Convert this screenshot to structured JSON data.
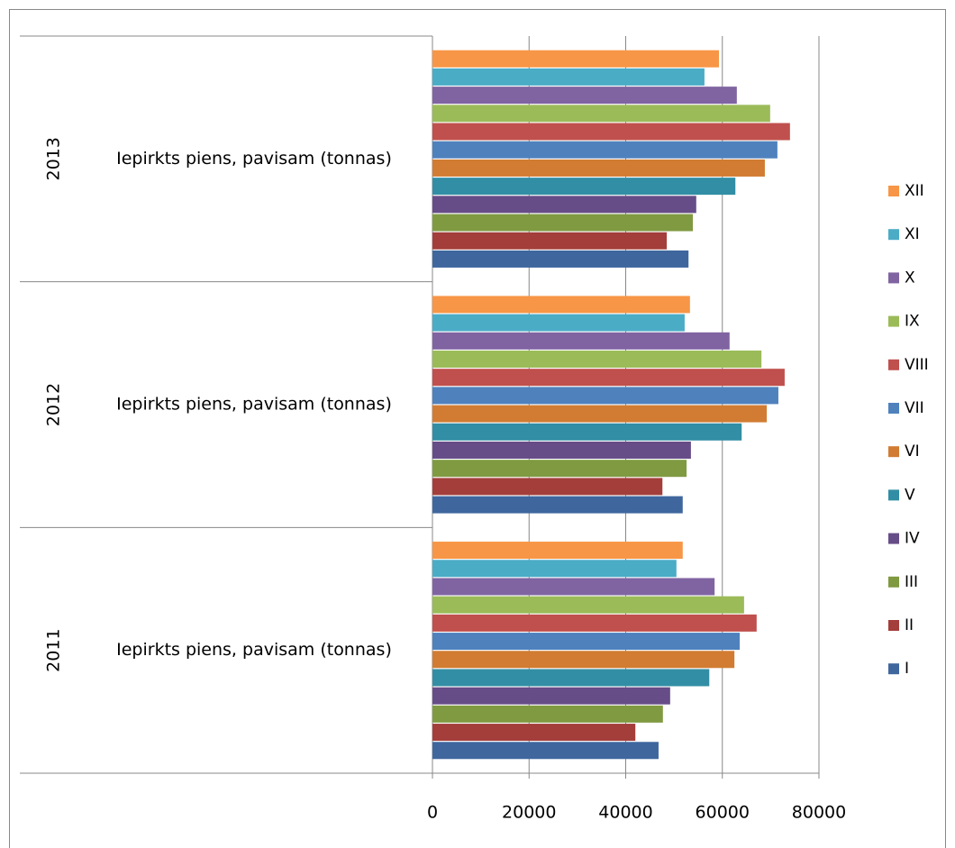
{
  "chart_data": {
    "type": "bar",
    "orientation": "horizontal",
    "categories": [
      "2011",
      "2012",
      "2013"
    ],
    "subcategories": [
      "Iepirkts piens, pavisam (tonnas)",
      "Iepirkts piens, pavisam (tonnas)",
      "Iepirkts piens, pavisam (tonnas)"
    ],
    "series": [
      {
        "name": "I",
        "color": "#3f679e",
        "values": [
          46800,
          51800,
          53000
        ]
      },
      {
        "name": "II",
        "color": "#a33e3b",
        "values": [
          42000,
          47600,
          48500
        ]
      },
      {
        "name": "III",
        "color": "#7f9a41",
        "values": [
          47700,
          52600,
          53900
        ]
      },
      {
        "name": "IV",
        "color": "#674d87",
        "values": [
          49200,
          53500,
          54600
        ]
      },
      {
        "name": "V",
        "color": "#328ea4",
        "values": [
          57300,
          64000,
          62700
        ]
      },
      {
        "name": "VI",
        "color": "#d17c32",
        "values": [
          62500,
          69200,
          68800
        ]
      },
      {
        "name": "VII",
        "color": "#4f81bd",
        "values": [
          63600,
          71600,
          71400
        ]
      },
      {
        "name": "VIII",
        "color": "#c0504d",
        "values": [
          67100,
          72900,
          74000
        ]
      },
      {
        "name": "IX",
        "color": "#9bbb59",
        "values": [
          64500,
          68100,
          69900
        ]
      },
      {
        "name": "X",
        "color": "#8064a2",
        "values": [
          58400,
          61500,
          63000
        ]
      },
      {
        "name": "XI",
        "color": "#4bacc6",
        "values": [
          50500,
          52200,
          56300
        ]
      },
      {
        "name": "XII",
        "color": "#f79646",
        "values": [
          51800,
          53300,
          59300
        ]
      }
    ],
    "xlim": [
      0,
      80000
    ],
    "xticks": [
      0,
      20000,
      40000,
      60000,
      80000
    ],
    "grid": true,
    "legend": "right"
  }
}
